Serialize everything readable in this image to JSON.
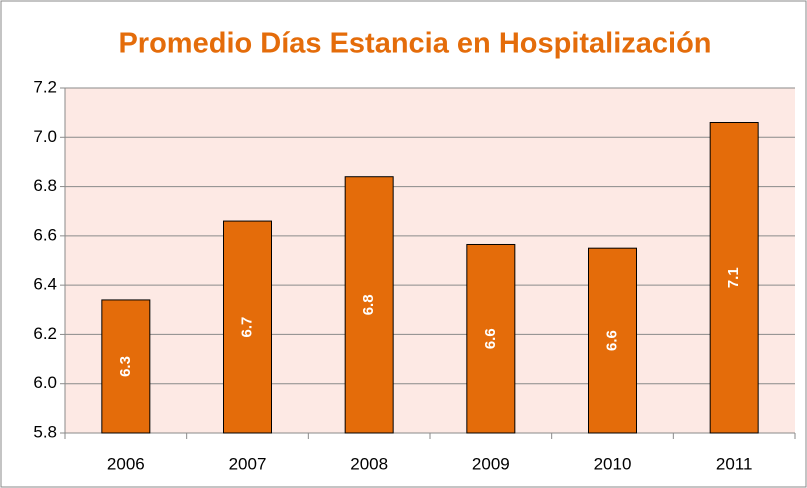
{
  "chart_data": {
    "type": "bar",
    "title": "Promedio Días Estancia en Hospitalización",
    "categories": [
      "2006",
      "2007",
      "2008",
      "2009",
      "2010",
      "2011"
    ],
    "values": [
      6.34,
      6.66,
      6.84,
      6.565,
      6.55,
      7.06
    ],
    "value_labels": [
      "6.3",
      "6.7",
      "6.8",
      "6.6",
      "6.6",
      "7.1"
    ],
    "color": "#e46c0a",
    "ylim": [
      5.8,
      7.2
    ],
    "yticks": [
      5.8,
      {
        "value": 6,
        "label": "6.0"
      },
      6.2,
      6.4,
      6.6,
      6.8,
      {
        "value": 7,
        "label": "7.0"
      },
      7.2
    ],
    "grid": true
  }
}
